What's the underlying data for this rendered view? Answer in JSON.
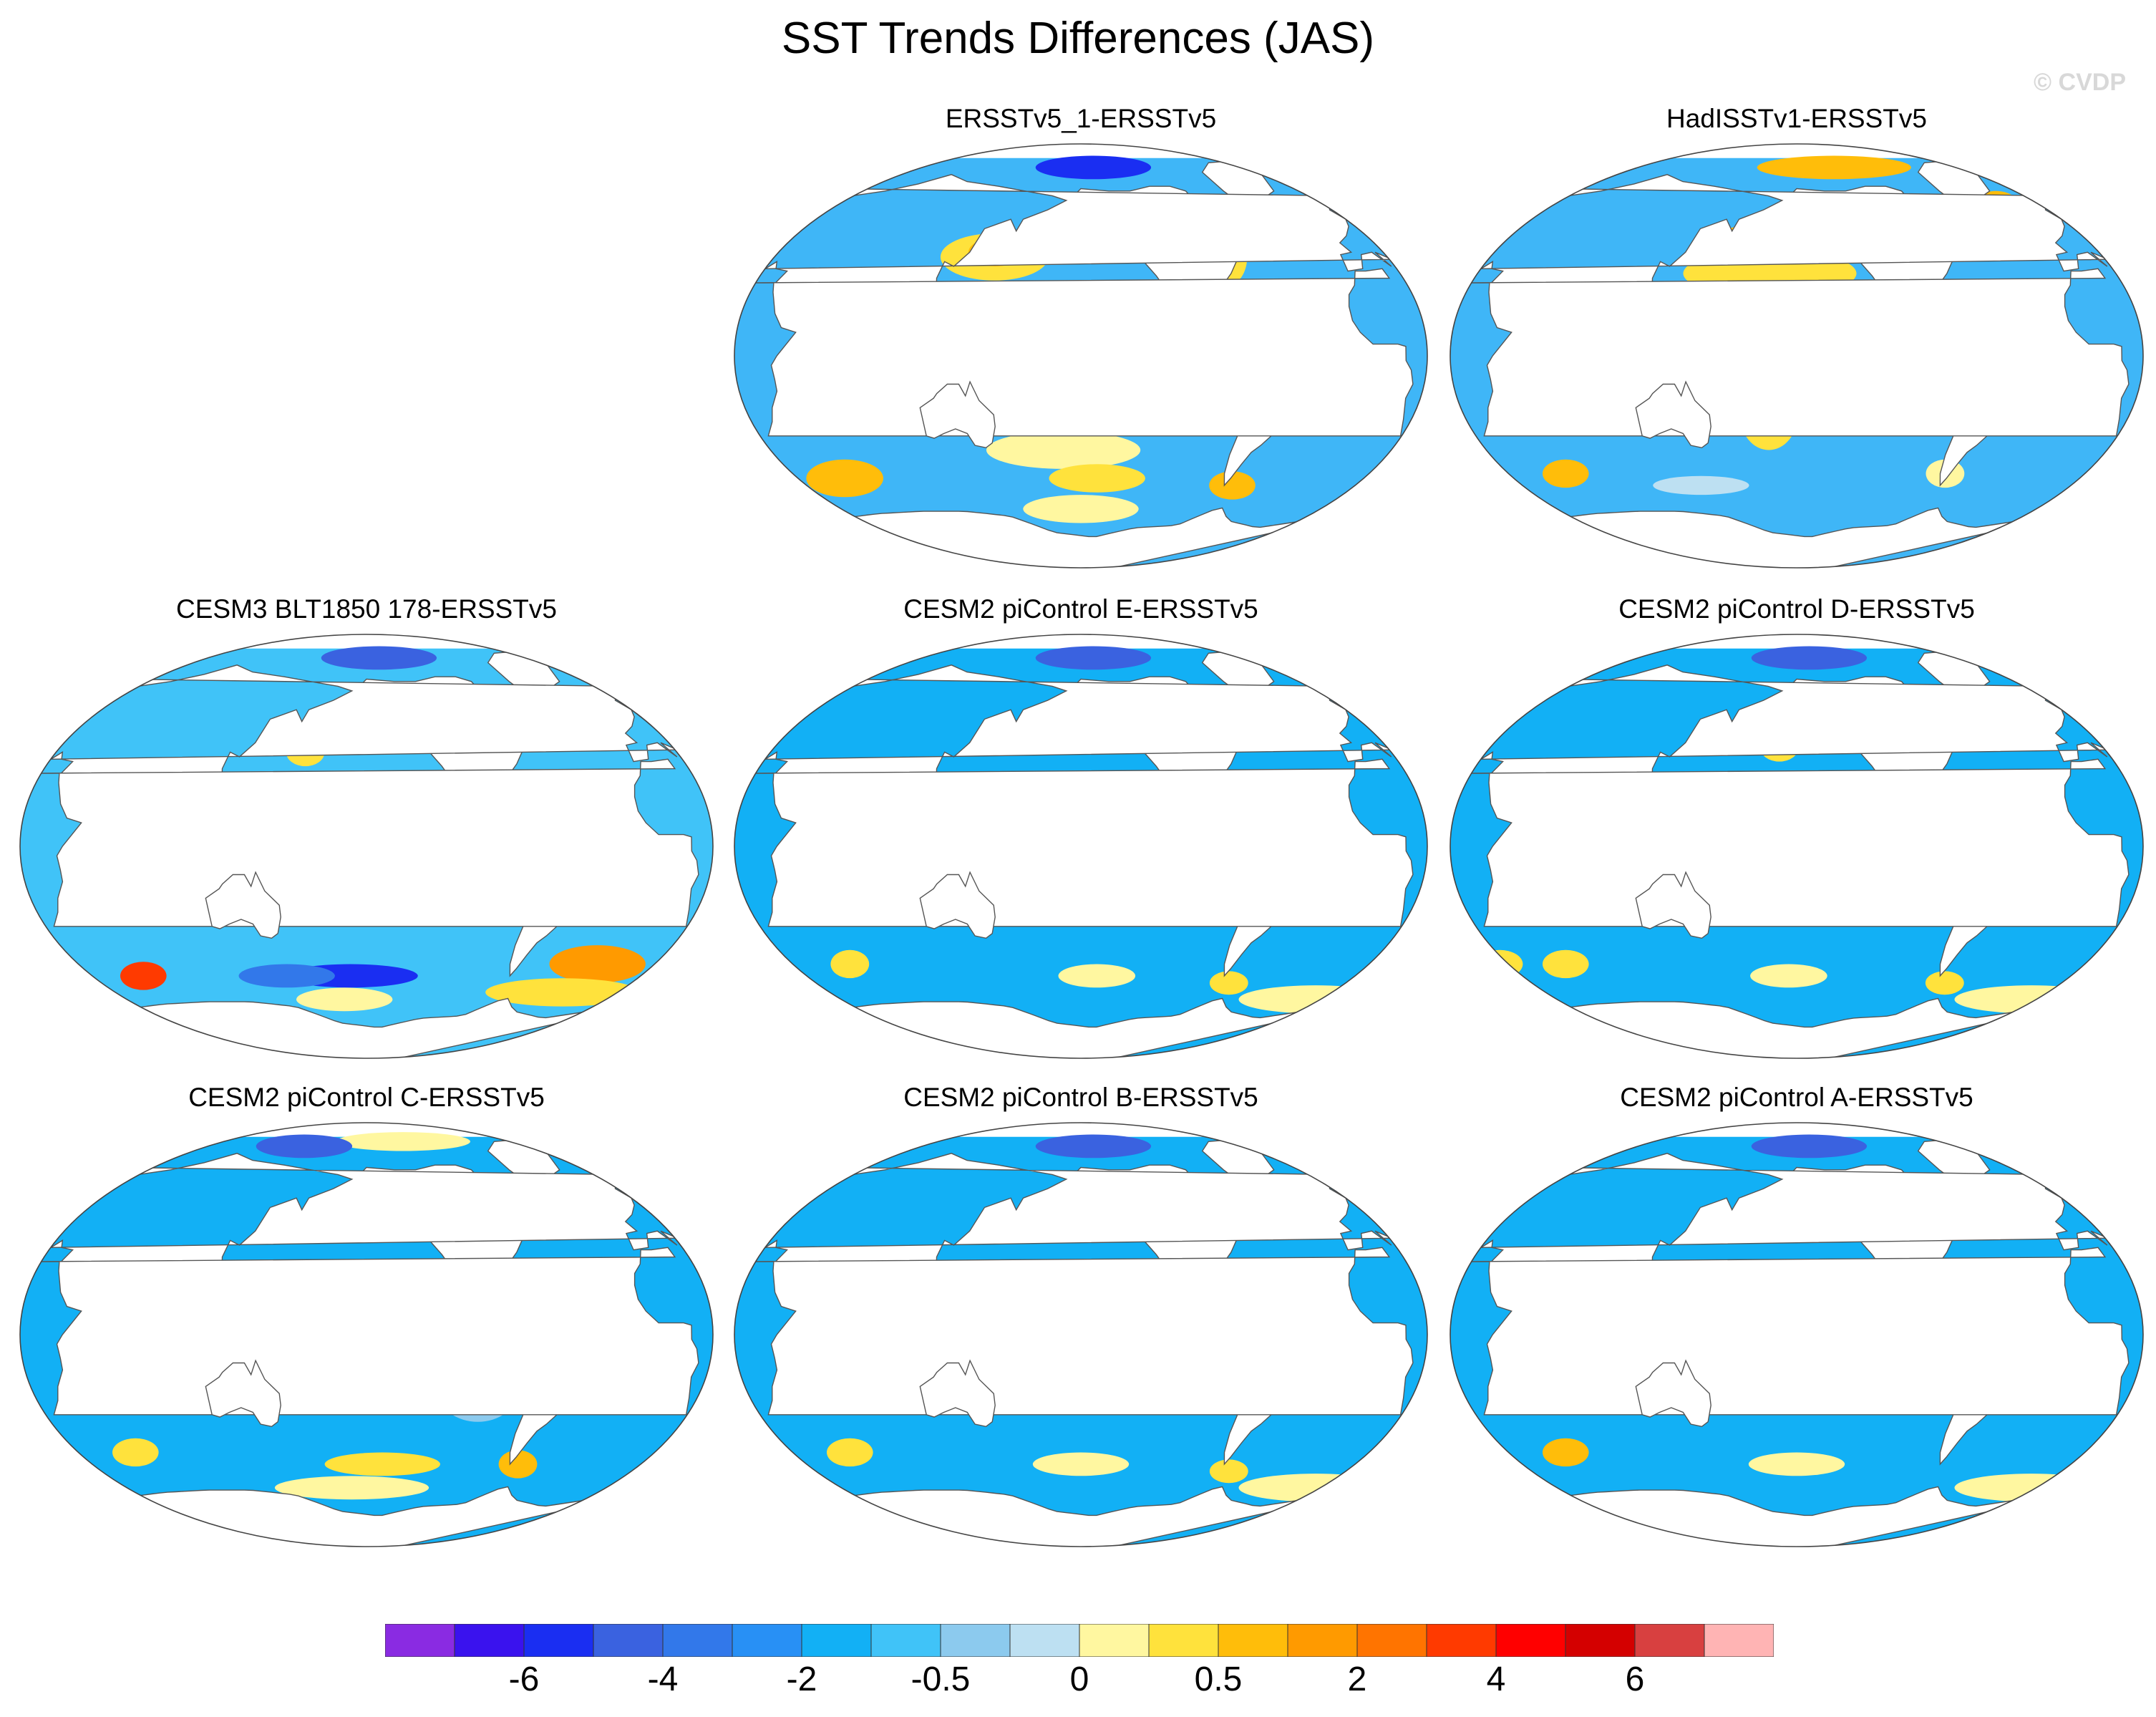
{
  "figure": {
    "title": "SST Trends Differences (JAS)",
    "watermark": "© CVDP"
  },
  "colors": {
    "land": "#ffffff",
    "coast": "#555555",
    "background": "#3fb6f7"
  },
  "colorbar": {
    "colors": [
      "#8a2be2",
      "#3a12ee",
      "#1a2ef2",
      "#3a62e0",
      "#3278ea",
      "#2890f5",
      "#12b0f5",
      "#40c3f8",
      "#8ccaee",
      "#bde0f2",
      "#fff7a0",
      "#ffe23c",
      "#ffbd0a",
      "#ff9a00",
      "#ff7400",
      "#ff3a00",
      "#ff0000",
      "#d40000",
      "#d84040",
      "#ffb4b4"
    ],
    "tick_labels": [
      "-6",
      "-4",
      "-2",
      "-0.5",
      "0",
      "0.5",
      "2",
      "4",
      "6"
    ],
    "tick_after_box": [
      2,
      4,
      6,
      8,
      10,
      12,
      14,
      16,
      18
    ]
  },
  "panels": [
    {
      "title": "ERSSTv5_1-ERSSTv5",
      "background": "#3fb6f7",
      "anomalies": [
        {
          "lon": 150,
          "lat": 42,
          "rx": 28,
          "ry": 10,
          "color": "#ffe23c"
        },
        {
          "lon": 150,
          "lat": 44,
          "rx": 14,
          "ry": 6,
          "color": "#ffbd0a"
        },
        {
          "lon": -75,
          "lat": 42,
          "rx": 10,
          "ry": 12,
          "color": "#ffe23c"
        },
        {
          "lon": -40,
          "lat": -25,
          "rx": 10,
          "ry": 8,
          "color": "#ffe23c"
        },
        {
          "lon": -170,
          "lat": -40,
          "rx": 40,
          "ry": 8,
          "color": "#fff7a0"
        },
        {
          "lon": -150,
          "lat": -52,
          "rx": 25,
          "ry": 6,
          "color": "#ffe23c"
        },
        {
          "lon": -65,
          "lat": -55,
          "rx": 12,
          "ry": 6,
          "color": "#ffbd0a"
        },
        {
          "lon": 55,
          "lat": -52,
          "rx": 20,
          "ry": 8,
          "color": "#ffbd0a"
        },
        {
          "lon": -160,
          "lat": -65,
          "rx": 30,
          "ry": 6,
          "color": "#fff7a0"
        },
        {
          "lon": 160,
          "lat": 0,
          "rx": 30,
          "ry": 8,
          "color": "#8ccaee"
        },
        {
          "lon": -100,
          "lat": -15,
          "rx": 20,
          "ry": 10,
          "color": "#8ccaee"
        },
        {
          "lon": -150,
          "lat": 80,
          "rx": 30,
          "ry": 5,
          "color": "#1a2ef2"
        }
      ]
    },
    {
      "title": "HadISSTv1-ERSSTv5",
      "background": "#3fb6f7",
      "anomalies": [
        {
          "lon": -170,
          "lat": 45,
          "rx": 40,
          "ry": 12,
          "color": "#ffbd0a"
        },
        {
          "lon": -175,
          "lat": 35,
          "rx": 45,
          "ry": 10,
          "color": "#ffe23c"
        },
        {
          "lon": -130,
          "lat": 80,
          "rx": 40,
          "ry": 5,
          "color": "#ffbd0a"
        },
        {
          "lon": -30,
          "lat": 60,
          "rx": 15,
          "ry": 10,
          "color": "#ffbd0a"
        },
        {
          "lon": -175,
          "lat": -25,
          "rx": 15,
          "ry": 15,
          "color": "#ffe23c"
        },
        {
          "lon": 60,
          "lat": -50,
          "rx": 12,
          "ry": 6,
          "color": "#ffbd0a"
        },
        {
          "lon": -70,
          "lat": -50,
          "rx": 10,
          "ry": 6,
          "color": "#fff7a0"
        },
        {
          "lon": 140,
          "lat": -55,
          "rx": 25,
          "ry": 4,
          "color": "#bde0f2"
        },
        {
          "lon": -120,
          "lat": -5,
          "rx": 30,
          "ry": 6,
          "color": "#8ccaee"
        }
      ]
    },
    {
      "title": "CESM3 BLT1850 178-ERSSTv5",
      "background": "#40c3f8",
      "anomalies": [
        {
          "lon": 165,
          "lat": 40,
          "rx": 10,
          "ry": 6,
          "color": "#ffe23c"
        },
        {
          "lon": -160,
          "lat": 15,
          "rx": 35,
          "ry": 4,
          "color": "#8ccaee"
        },
        {
          "lon": -170,
          "lat": -55,
          "rx": 35,
          "ry": 5,
          "color": "#1a2ef2"
        },
        {
          "lon": 150,
          "lat": -55,
          "rx": 25,
          "ry": 5,
          "color": "#3278ea"
        },
        {
          "lon": -20,
          "lat": -50,
          "rx": 25,
          "ry": 8,
          "color": "#ff9a00"
        },
        {
          "lon": -30,
          "lat": -62,
          "rx": 40,
          "ry": 6,
          "color": "#ffe23c"
        },
        {
          "lon": -175,
          "lat": -65,
          "rx": 25,
          "ry": 5,
          "color": "#fff7a0"
        },
        {
          "lon": 60,
          "lat": -55,
          "rx": 12,
          "ry": 6,
          "color": "#ff3a00"
        },
        {
          "lon": -150,
          "lat": 80,
          "rx": 30,
          "ry": 5,
          "color": "#3a62e0"
        }
      ]
    },
    {
      "title": "CESM2 piControl E-ERSSTv5",
      "background": "#12b0f5",
      "anomalies": [
        {
          "lon": -160,
          "lat": 20,
          "rx": 30,
          "ry": 8,
          "color": "#40c3f8"
        },
        {
          "lon": -100,
          "lat": -20,
          "rx": 25,
          "ry": 10,
          "color": "#8ccaee"
        },
        {
          "lon": 60,
          "lat": -50,
          "rx": 10,
          "ry": 6,
          "color": "#ffe23c"
        },
        {
          "lon": -150,
          "lat": -55,
          "rx": 20,
          "ry": 5,
          "color": "#fff7a0"
        },
        {
          "lon": -65,
          "lat": -58,
          "rx": 10,
          "ry": 5,
          "color": "#ffe23c"
        },
        {
          "lon": 0,
          "lat": -65,
          "rx": 40,
          "ry": 6,
          "color": "#fff7a0"
        },
        {
          "lon": -50,
          "lat": 50,
          "rx": 10,
          "ry": 8,
          "color": "#bde0f2"
        },
        {
          "lon": -150,
          "lat": 80,
          "rx": 30,
          "ry": 5,
          "color": "#3a62e0"
        }
      ]
    },
    {
      "title": "CESM2 piControl D-ERSSTv5",
      "background": "#12b0f5",
      "anomalies": [
        {
          "lon": -170,
          "lat": 42,
          "rx": 10,
          "ry": 6,
          "color": "#ffe23c"
        },
        {
          "lon": -160,
          "lat": 20,
          "rx": 30,
          "ry": 8,
          "color": "#40c3f8"
        },
        {
          "lon": 60,
          "lat": -50,
          "rx": 12,
          "ry": 6,
          "color": "#ffe23c"
        },
        {
          "lon": -165,
          "lat": -55,
          "rx": 20,
          "ry": 5,
          "color": "#fff7a0"
        },
        {
          "lon": -65,
          "lat": -58,
          "rx": 10,
          "ry": 5,
          "color": "#ffe23c"
        },
        {
          "lon": 20,
          "lat": -50,
          "rx": 12,
          "ry": 6,
          "color": "#ffe23c"
        },
        {
          "lon": 0,
          "lat": -65,
          "rx": 40,
          "ry": 6,
          "color": "#fff7a0"
        },
        {
          "lon": -150,
          "lat": 80,
          "rx": 30,
          "ry": 5,
          "color": "#3a62e0"
        }
      ]
    },
    {
      "title": "CESM2 piControl C-ERSSTv5",
      "background": "#12b0f5",
      "anomalies": [
        {
          "lon": -160,
          "lat": 15,
          "rx": 35,
          "ry": 10,
          "color": "#40c3f8"
        },
        {
          "lon": -100,
          "lat": -25,
          "rx": 20,
          "ry": 12,
          "color": "#8ccaee"
        },
        {
          "lon": 60,
          "lat": -50,
          "rx": 12,
          "ry": 6,
          "color": "#ffe23c"
        },
        {
          "lon": -150,
          "lat": -55,
          "rx": 30,
          "ry": 5,
          "color": "#ffe23c"
        },
        {
          "lon": -65,
          "lat": -55,
          "rx": 10,
          "ry": 6,
          "color": "#ffbd0a"
        },
        {
          "lon": -170,
          "lat": -65,
          "rx": 40,
          "ry": 5,
          "color": "#fff7a0"
        },
        {
          "lon": -130,
          "lat": 82,
          "rx": 35,
          "ry": 4,
          "color": "#fff7a0"
        },
        {
          "lon": 150,
          "lat": 80,
          "rx": 25,
          "ry": 5,
          "color": "#3a62e0"
        }
      ]
    },
    {
      "title": "CESM2 piControl B-ERSSTv5",
      "background": "#12b0f5",
      "anomalies": [
        {
          "lon": -160,
          "lat": 15,
          "rx": 30,
          "ry": 8,
          "color": "#40c3f8"
        },
        {
          "lon": -30,
          "lat": 58,
          "rx": 8,
          "ry": 6,
          "color": "#ffe23c"
        },
        {
          "lon": 60,
          "lat": -50,
          "rx": 12,
          "ry": 6,
          "color": "#ffe23c"
        },
        {
          "lon": -160,
          "lat": -55,
          "rx": 25,
          "ry": 5,
          "color": "#fff7a0"
        },
        {
          "lon": -65,
          "lat": -58,
          "rx": 10,
          "ry": 5,
          "color": "#ffe23c"
        },
        {
          "lon": 0,
          "lat": -65,
          "rx": 40,
          "ry": 6,
          "color": "#fff7a0"
        },
        {
          "lon": -150,
          "lat": 80,
          "rx": 30,
          "ry": 5,
          "color": "#3a62e0"
        }
      ]
    },
    {
      "title": "CESM2 piControl A-ERSSTv5",
      "background": "#12b0f5",
      "anomalies": [
        {
          "lon": -160,
          "lat": 20,
          "rx": 30,
          "ry": 8,
          "color": "#40c3f8"
        },
        {
          "lon": -100,
          "lat": -20,
          "rx": 20,
          "ry": 10,
          "color": "#8ccaee"
        },
        {
          "lon": 60,
          "lat": -50,
          "rx": 12,
          "ry": 6,
          "color": "#ffbd0a"
        },
        {
          "lon": -160,
          "lat": -55,
          "rx": 25,
          "ry": 5,
          "color": "#fff7a0"
        },
        {
          "lon": 0,
          "lat": -65,
          "rx": 40,
          "ry": 6,
          "color": "#fff7a0"
        },
        {
          "lon": -150,
          "lat": 80,
          "rx": 30,
          "ry": 5,
          "color": "#3a62e0"
        }
      ]
    }
  ]
}
